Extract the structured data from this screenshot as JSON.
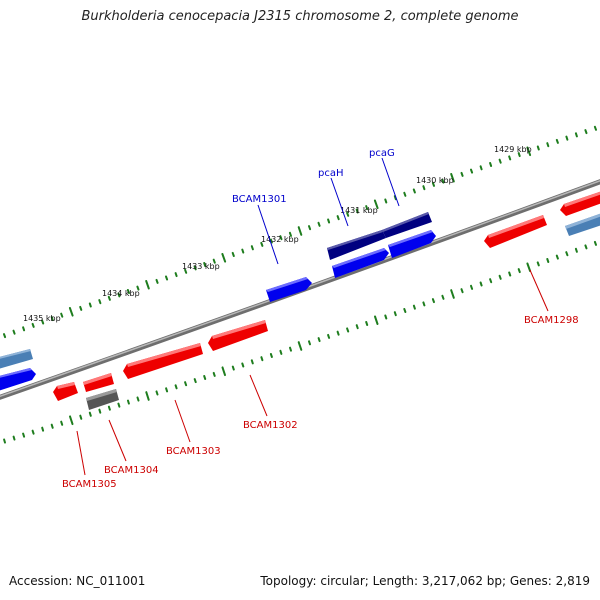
{
  "title": "Burkholderia cenocepacia J2315 chromosome 2, complete genome",
  "footer": {
    "accession": "Accession: NC_011001",
    "summary": "Topology: circular; Length: 3,217,062 bp; Genes: 2,819"
  },
  "colors": {
    "backbone": "#8a8a8a",
    "ruler_tick": "#1e7d1e",
    "forward_gene": "#0000ee",
    "forward_gene_dark": "#000080",
    "reverse_gene": "#ee0000",
    "other_gene": "#555555",
    "faded_gene": "#4a7fb5",
    "forward_label": "#0000cc",
    "reverse_label": "#cc0000"
  },
  "ruler_labels": [
    "1429 kbp",
    "1430 kbp",
    "1431 kbp",
    "1432 kbp",
    "1433 kbp",
    "1434 kbp",
    "1435 kbp"
  ],
  "gene_labels": [
    "pcaG",
    "pcaH",
    "BCAM1301",
    "BCAM1298",
    "BCAM1302",
    "BCAM1303",
    "BCAM1304",
    "BCAM1305"
  ]
}
